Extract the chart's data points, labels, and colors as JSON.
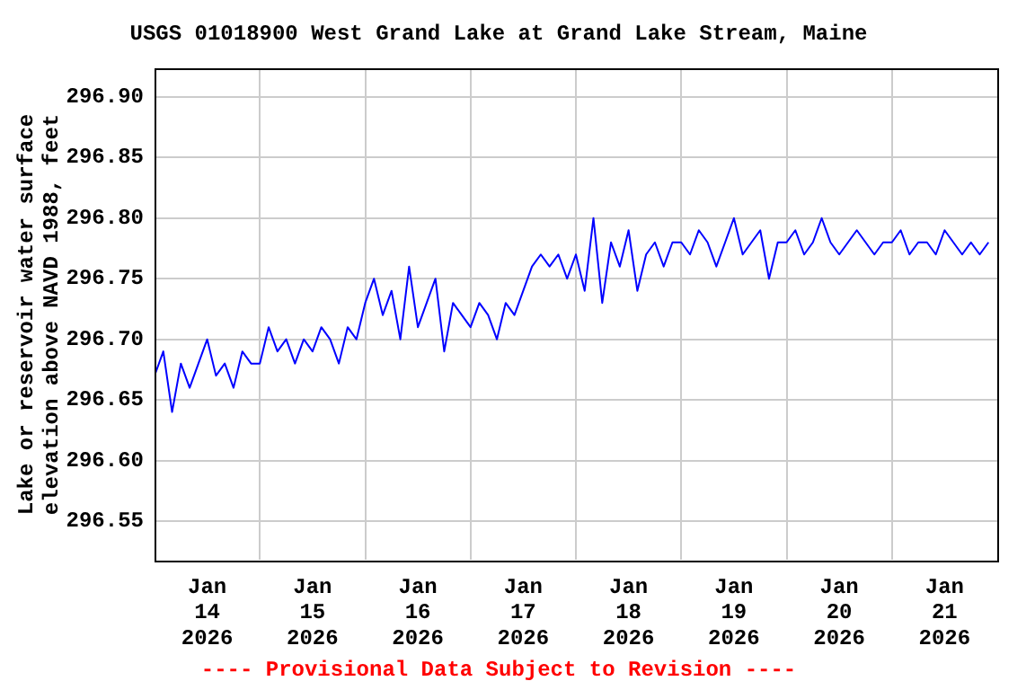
{
  "chart_data": {
    "type": "line",
    "title": "USGS 01018900 West Grand Lake at Grand Lake Stream, Maine",
    "ylabel": "Lake or reservoir water surface elevation above NAVD 1988, feet",
    "annotations": [
      "---- Provisional Data Subject to Revision ----"
    ],
    "x": [
      "2026-01-14T00:00",
      "2026-01-14T02:00",
      "2026-01-14T04:00",
      "2026-01-14T06:00",
      "2026-01-14T08:00",
      "2026-01-14T10:00",
      "2026-01-14T12:00",
      "2026-01-14T14:00",
      "2026-01-14T16:00",
      "2026-01-14T18:00",
      "2026-01-14T20:00",
      "2026-01-14T22:00",
      "2026-01-15T00:00",
      "2026-01-15T02:00",
      "2026-01-15T04:00",
      "2026-01-15T06:00",
      "2026-01-15T08:00",
      "2026-01-15T10:00",
      "2026-01-15T12:00",
      "2026-01-15T14:00",
      "2026-01-15T16:00",
      "2026-01-15T18:00",
      "2026-01-15T20:00",
      "2026-01-15T22:00",
      "2026-01-16T00:00",
      "2026-01-16T02:00",
      "2026-01-16T04:00",
      "2026-01-16T06:00",
      "2026-01-16T08:00",
      "2026-01-16T10:00",
      "2026-01-16T12:00",
      "2026-01-16T14:00",
      "2026-01-16T16:00",
      "2026-01-16T18:00",
      "2026-01-16T20:00",
      "2026-01-16T22:00",
      "2026-01-17T00:00",
      "2026-01-17T02:00",
      "2026-01-17T04:00",
      "2026-01-17T06:00",
      "2026-01-17T08:00",
      "2026-01-17T10:00",
      "2026-01-17T12:00",
      "2026-01-17T14:00",
      "2026-01-17T16:00",
      "2026-01-17T18:00",
      "2026-01-17T20:00",
      "2026-01-17T22:00",
      "2026-01-18T00:00",
      "2026-01-18T02:00",
      "2026-01-18T04:00",
      "2026-01-18T06:00",
      "2026-01-18T08:00",
      "2026-01-18T10:00",
      "2026-01-18T12:00",
      "2026-01-18T14:00",
      "2026-01-18T16:00",
      "2026-01-18T18:00",
      "2026-01-18T20:00",
      "2026-01-18T22:00",
      "2026-01-19T00:00",
      "2026-01-19T02:00",
      "2026-01-19T04:00",
      "2026-01-19T06:00",
      "2026-01-19T08:00",
      "2026-01-19T10:00",
      "2026-01-19T12:00",
      "2026-01-19T14:00",
      "2026-01-19T16:00",
      "2026-01-19T18:00",
      "2026-01-19T20:00",
      "2026-01-19T22:00",
      "2026-01-20T00:00",
      "2026-01-20T02:00",
      "2026-01-20T04:00",
      "2026-01-20T06:00",
      "2026-01-20T08:00",
      "2026-01-20T10:00",
      "2026-01-20T12:00",
      "2026-01-20T14:00",
      "2026-01-20T16:00",
      "2026-01-20T18:00",
      "2026-01-20T20:00",
      "2026-01-20T22:00",
      "2026-01-21T00:00",
      "2026-01-21T02:00",
      "2026-01-21T04:00",
      "2026-01-21T06:00",
      "2026-01-21T08:00",
      "2026-01-21T10:00",
      "2026-01-21T12:00",
      "2026-01-21T14:00",
      "2026-01-21T16:00",
      "2026-01-21T18:00",
      "2026-01-21T20:00",
      "2026-01-21T22:00"
    ],
    "series": [
      {
        "color": "#0000ff",
        "values": [
          296.67,
          296.69,
          296.64,
          296.68,
          296.66,
          296.68,
          296.7,
          296.67,
          296.68,
          296.66,
          296.69,
          296.68,
          296.68,
          296.71,
          296.69,
          296.7,
          296.68,
          296.7,
          296.69,
          296.71,
          296.7,
          296.68,
          296.71,
          296.7,
          296.73,
          296.75,
          296.72,
          296.74,
          296.7,
          296.76,
          296.71,
          296.73,
          296.75,
          296.69,
          296.73,
          296.72,
          296.71,
          296.73,
          296.72,
          296.7,
          296.73,
          296.72,
          296.74,
          296.76,
          296.77,
          296.76,
          296.77,
          296.75,
          296.77,
          296.74,
          296.8,
          296.73,
          296.78,
          296.76,
          296.79,
          296.74,
          296.77,
          296.78,
          296.76,
          296.78,
          296.78,
          296.77,
          296.79,
          296.78,
          296.76,
          296.78,
          296.8,
          296.77,
          296.78,
          296.79,
          296.75,
          296.78,
          296.78,
          296.79,
          296.77,
          296.78,
          296.8,
          296.78,
          296.77,
          296.78,
          296.79,
          296.78,
          296.77,
          296.78,
          296.78,
          296.79,
          296.77,
          296.78,
          296.78,
          296.77,
          296.79,
          296.78,
          296.77,
          296.78,
          296.77,
          296.78
        ]
      }
    ],
    "xlim": [
      "2026-01-14",
      "2026-01-22"
    ],
    "xticks": [
      {
        "value": "2026-01-14T12:00",
        "label": "Jan 14 2026"
      },
      {
        "value": "2026-01-15",
        "label": null
      },
      {
        "value": "2026-01-15T12:00",
        "label": "Jan 15 2026"
      },
      {
        "value": "2026-01-16",
        "label": null
      },
      {
        "value": "2026-01-16T12:00",
        "label": "Jan 16 2026"
      },
      {
        "value": "2026-01-17",
        "label": null
      },
      {
        "value": "2026-01-17T12:00",
        "label": "Jan 17 2026"
      },
      {
        "value": "2026-01-18",
        "label": null
      },
      {
        "value": "2026-01-18T12:00",
        "label": "Jan 18 2026"
      },
      {
        "value": "2026-01-19",
        "label": null
      },
      {
        "value": "2026-01-19T12:00",
        "label": "Jan 19 2026"
      },
      {
        "value": "2026-01-20",
        "label": null
      },
      {
        "value": "2026-01-20T12:00",
        "label": "Jan 20 2026"
      },
      {
        "value": "2026-01-21",
        "label": null
      },
      {
        "value": "2026-01-21T12:00",
        "label": "Jan 21 2026"
      }
    ],
    "ylim": [
      296.518,
      296.923
    ],
    "yticks": [
      {
        "value": 296.55,
        "label": "296.55"
      },
      {
        "value": 296.6,
        "label": "296.60"
      },
      {
        "value": 296.65,
        "label": "296.65"
      },
      {
        "value": 296.7,
        "label": "296.70"
      },
      {
        "value": 296.75,
        "label": "296.75"
      },
      {
        "value": 296.8,
        "label": "296.80"
      },
      {
        "value": 296.85,
        "label": "296.85"
      },
      {
        "value": 296.9,
        "label": "296.90"
      }
    ],
    "grid": true,
    "legend": false,
    "marker": "none",
    "line_style": "solid"
  }
}
